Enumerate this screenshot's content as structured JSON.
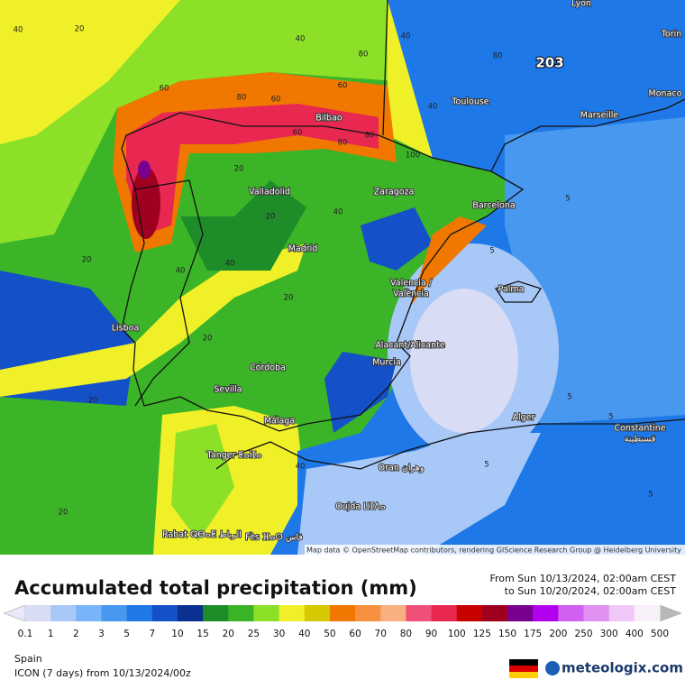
{
  "map": {
    "cities": [
      "Lyon",
      "Torin",
      "Monaco",
      "Marseille",
      "Toulouse",
      "Bilbao",
      "Zaragoza",
      "Barcelona",
      "Valladolid",
      "Madrid",
      "Valencia /",
      "València",
      "Palma",
      "Lisboa",
      "Alacant/Alicante",
      "Murcia",
      "Córdoba",
      "Sevilla",
      "Málaga",
      "Tanger ⵟⴰⵏⵊⴰ",
      "Alger",
      "Constantine",
      "قسنطينة",
      "Oran وهران",
      "Oujda ⵡⵊⴷⴰ",
      "Rabat ⵕⴱⴰⵟ الرباط",
      "Fès ⴼⴰⵙ فاس"
    ],
    "max_label": "203",
    "contour_labels": [
      "20",
      "40",
      "60",
      "80",
      "40",
      "60",
      "80",
      "80",
      "100",
      "40",
      "60",
      "80",
      "40",
      "20",
      "40",
      "20",
      "40",
      "20",
      "20",
      "20",
      "5",
      "5",
      "5",
      "5",
      "5",
      "5",
      "40",
      "20",
      "40",
      "20",
      "80",
      "60"
    ],
    "attribution": "Map data © OpenStreetMap contributors, rendering GIScience Research Group @ Heidelberg University"
  },
  "legend": {
    "title": "Accumulated total precipitation (mm)",
    "from": "From Sun 10/13/2024, 02:00am CEST",
    "to": "to Sun 10/20/2024, 02:00am CEST",
    "ticks": [
      0.1,
      1,
      2,
      3,
      5,
      7,
      10,
      15,
      20,
      25,
      30,
      40,
      50,
      60,
      70,
      80,
      90,
      100,
      125,
      150,
      175,
      200,
      250,
      300,
      400,
      500
    ],
    "colors": [
      "#d8dcf4",
      "#a8c8f8",
      "#78b4f8",
      "#4898f0",
      "#1e78e8",
      "#1450c8",
      "#0a3090",
      "#1e8c28",
      "#3cb428",
      "#8ce028",
      "#f0f028",
      "#d8c800",
      "#f07800",
      "#f89040",
      "#f8b080",
      "#f05078",
      "#e82850",
      "#c80000",
      "#a00020",
      "#780090",
      "#b400f0",
      "#d060f0",
      "#e090f0",
      "#f0c8f8",
      "#f8f0f8"
    ],
    "low_color": "#e8e8f8",
    "high_color": "#b8b8b8"
  },
  "footer": {
    "region": "Spain",
    "model": "ICON (7 days)  from  10/13/2024/00z",
    "brand": "meteologix.com"
  }
}
